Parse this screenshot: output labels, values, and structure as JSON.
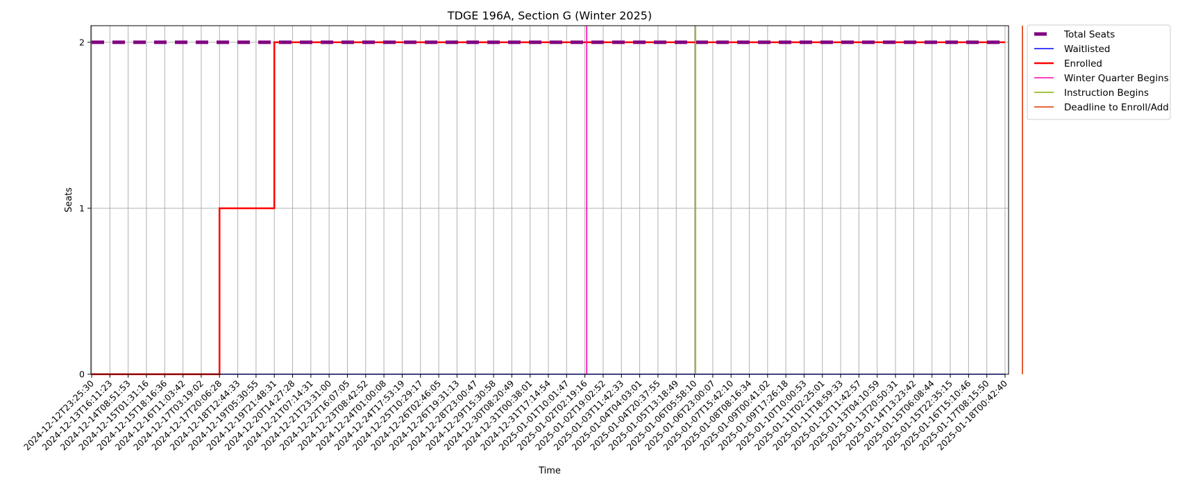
{
  "chart_data": {
    "type": "line",
    "title": "TDGE 196A, Section G (Winter 2025)",
    "xlabel": "Time",
    "ylabel": "Seats",
    "ylim": [
      0,
      2.1
    ],
    "yticks": [
      0,
      1,
      2
    ],
    "grid": true,
    "legend_position": "outside-top-right",
    "x": [
      "2024-12-12T23:25:30",
      "2024-12-13T16:11:23",
      "2024-12-14T08:51:53",
      "2024-12-15T01:31:16",
      "2024-12-15T18:16:36",
      "2024-12-16T11:03:42",
      "2024-12-17T03:19:02",
      "2024-12-17T20:06:28",
      "2024-12-18T12:44:33",
      "2024-12-19T05:30:55",
      "2024-12-19T21:48:31",
      "2024-12-20T14:27:28",
      "2024-12-21T07:14:31",
      "2024-12-21T23:31:00",
      "2024-12-22T16:07:05",
      "2024-12-23T08:42:52",
      "2024-12-24T01:00:08",
      "2024-12-24T17:53:19",
      "2024-12-25T10:29:17",
      "2024-12-26T02:46:05",
      "2024-12-26T19:31:13",
      "2024-12-28T23:00:47",
      "2024-12-29T15:30:58",
      "2024-12-30T08:20:49",
      "2024-12-31T00:38:01",
      "2024-12-31T17:14:54",
      "2025-01-01T10:01:47",
      "2025-01-02T02:19:16",
      "2025-01-02T19:02:52",
      "2025-01-03T11:42:33",
      "2025-01-04T04:03:01",
      "2025-01-04T20:37:55",
      "2025-01-05T13:18:49",
      "2025-01-06T05:58:10",
      "2025-01-06T23:00:07",
      "2025-01-07T15:42:10",
      "2025-01-08T08:16:34",
      "2025-01-09T00:41:02",
      "2025-01-09T17:26:18",
      "2025-01-10T10:00:53",
      "2025-01-11T02:25:01",
      "2025-01-11T18:59:33",
      "2025-01-12T11:42:57",
      "2025-01-13T04:10:59",
      "2025-01-13T20:50:31",
      "2025-01-14T13:23:42",
      "2025-01-15T06:08:44",
      "2025-01-15T22:35:15",
      "2025-01-16T15:10:46",
      "2025-01-17T08:15:50",
      "2025-01-18T00:42:40"
    ],
    "series": [
      {
        "name": "Total Seats",
        "color": "#800080",
        "style": "dashed-thick",
        "values": [
          2,
          2,
          2,
          2,
          2,
          2,
          2,
          2,
          2,
          2,
          2,
          2,
          2,
          2,
          2,
          2,
          2,
          2,
          2,
          2,
          2,
          2,
          2,
          2,
          2,
          2,
          2,
          2,
          2,
          2,
          2,
          2,
          2,
          2,
          2,
          2,
          2,
          2,
          2,
          2,
          2,
          2,
          2,
          2,
          2,
          2,
          2,
          2,
          2,
          2,
          2
        ]
      },
      {
        "name": "Waitlisted",
        "color": "#0000ff",
        "style": "thin-step",
        "values": [
          0,
          0,
          0,
          0,
          0,
          0,
          0,
          0,
          0,
          0,
          0,
          0,
          0,
          0,
          0,
          0,
          0,
          0,
          0,
          0,
          0,
          0,
          0,
          0,
          0,
          0,
          0,
          0,
          0,
          0,
          0,
          0,
          0,
          0,
          0,
          0,
          0,
          0,
          0,
          0,
          0,
          0,
          0,
          0,
          0,
          0,
          0,
          0,
          0,
          0,
          0
        ]
      },
      {
        "name": "Enrolled",
        "color": "#ff0000",
        "style": "thick-step",
        "values": [
          0,
          0,
          0,
          0,
          0,
          0,
          0,
          1,
          1,
          1,
          2,
          2,
          2,
          2,
          2,
          2,
          2,
          2,
          2,
          2,
          2,
          2,
          2,
          2,
          2,
          2,
          2,
          2,
          2,
          2,
          2,
          2,
          2,
          2,
          2,
          2,
          2,
          2,
          2,
          2,
          2,
          2,
          2,
          2,
          2,
          2,
          2,
          2,
          2,
          2,
          2
        ]
      }
    ],
    "events": [
      {
        "name": "Winter Quarter Begins",
        "color": "#ff00aa",
        "x_position": 27.1
      },
      {
        "name": "Instruction Begins",
        "color": "#88b000",
        "x_position": 33.06
      },
      {
        "name": "Deadline to Enroll/Add",
        "color": "#dd3300",
        "x_position": 50.95
      }
    ]
  }
}
